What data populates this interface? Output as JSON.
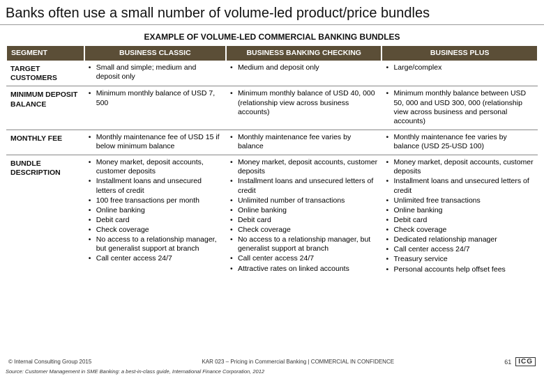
{
  "title": "Banks often use a small number of volume-led product/price bundles",
  "subtitle": "EXAMPLE OF VOLUME-LED COMMERCIAL BANKING BUNDLES",
  "colors": {
    "header_bg": "#5b4e37",
    "header_text": "#ffffff",
    "divider": "#888888",
    "text": "#111111"
  },
  "columns": [
    "SEGMENT",
    "BUSINESS CLASSIC",
    "BUSINESS BANKING CHECKING",
    "BUSINESS PLUS"
  ],
  "rows": [
    {
      "label": "TARGET CUSTOMERS",
      "cells": [
        [
          "Small and simple; medium and deposit only"
        ],
        [
          "Medium and deposit only"
        ],
        [
          "Large/complex"
        ]
      ]
    },
    {
      "label": "MINIMUM DEPOSIT BALANCE",
      "cells": [
        [
          "Minimum monthly balance of USD 7, 500"
        ],
        [
          "Minimum monthly balance of USD 40, 000 (relationship view across business accounts)"
        ],
        [
          "Minimum monthly balance between USD 50, 000 and USD 300, 000 (relationship view across business and personal accounts)"
        ]
      ]
    },
    {
      "label": "MONTHLY FEE",
      "cells": [
        [
          "Monthly maintenance fee of USD 15 if below minimum balance"
        ],
        [
          "Monthly maintenance fee varies by balance"
        ],
        [
          "Monthly maintenance fee varies by balance (USD 25-USD 100)"
        ]
      ]
    },
    {
      "label": "BUNDLE DESCRIPTION",
      "cells": [
        [
          "Money market, deposit accounts, customer deposits",
          "Installment loans and unsecured letters of credit",
          "100 free transactions per month",
          "Online banking",
          "Debit card",
          "Check coverage",
          "No access to a relationship manager, but generalist support at branch",
          "Call center access 24/7"
        ],
        [
          "Money market, deposit accounts, customer deposits",
          "Installment loans and unsecured letters of credit",
          "Unlimited number of transactions",
          "Online banking",
          "Debit card",
          "Check coverage",
          "No access to a relationship manager, but generalist support at branch",
          "Call center access 24/7",
          "Attractive rates on linked accounts"
        ],
        [
          "Money market, deposit accounts, customer deposits",
          "Installment loans and unsecured letters of credit",
          "Unlimited free transactions",
          "Online banking",
          "Debit card",
          "Check coverage",
          "Dedicated relationship manager",
          "Call center access 24/7",
          "Treasury service",
          "Personal accounts help offset fees"
        ]
      ]
    }
  ],
  "footer": {
    "copyright": "© Internal Consulting Group 2015",
    "center": "KAR 023 – Pricing in Commercial Banking | COMMERCIAL IN CONFIDENCE",
    "page": "61",
    "logo": "ICG"
  },
  "source": "Source: Customer Management in SME Banking: a best-in-class guide, International Finance Corporation, 2012"
}
